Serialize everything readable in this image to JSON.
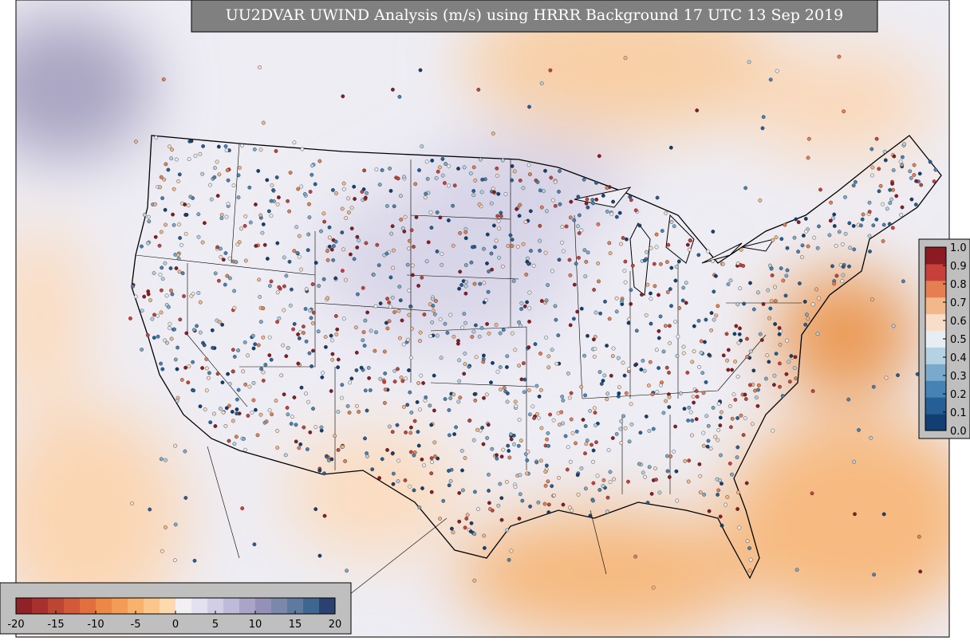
{
  "title": "UU2DVAR UWIND Analysis (m/s) using HRRR Background 17 UTC 13 Sep 2019",
  "wind_colorbar": {
    "ticks": [
      -20,
      -15,
      -10,
      -5,
      0,
      5,
      10,
      15,
      20
    ],
    "lim": [
      -20,
      20
    ],
    "colors": [
      "#8e2226",
      "#a8302e",
      "#bd4534",
      "#d2593a",
      "#e2703e",
      "#ec8746",
      "#f39c55",
      "#f9b26c",
      "#fcc58a",
      "#fdd9ae",
      "#f3f0f4",
      "#e3e1ef",
      "#d1cee6",
      "#bebad9",
      "#aaa4c9",
      "#9590b8",
      "#7c87ac",
      "#5e7b9f",
      "#3f6690",
      "#2b4270"
    ]
  },
  "obs_colorbar": {
    "ticks": [
      {
        "value": 0,
        "label": "0.0"
      },
      0.1,
      0.2,
      0.3,
      0.4,
      0.5,
      0.6,
      0.7,
      0.8,
      0.9,
      {
        "value": 1,
        "label": "1.0"
      }
    ],
    "lim": [
      0,
      1
    ],
    "colors": [
      "#123f73",
      "#255f95",
      "#4682b4",
      "#79a9cb",
      "#b4d2e3",
      "#e6eef3",
      "#f8ddc9",
      "#f2b889",
      "#e57f52",
      "#c7413a",
      "#8b1a22"
    ]
  }
}
